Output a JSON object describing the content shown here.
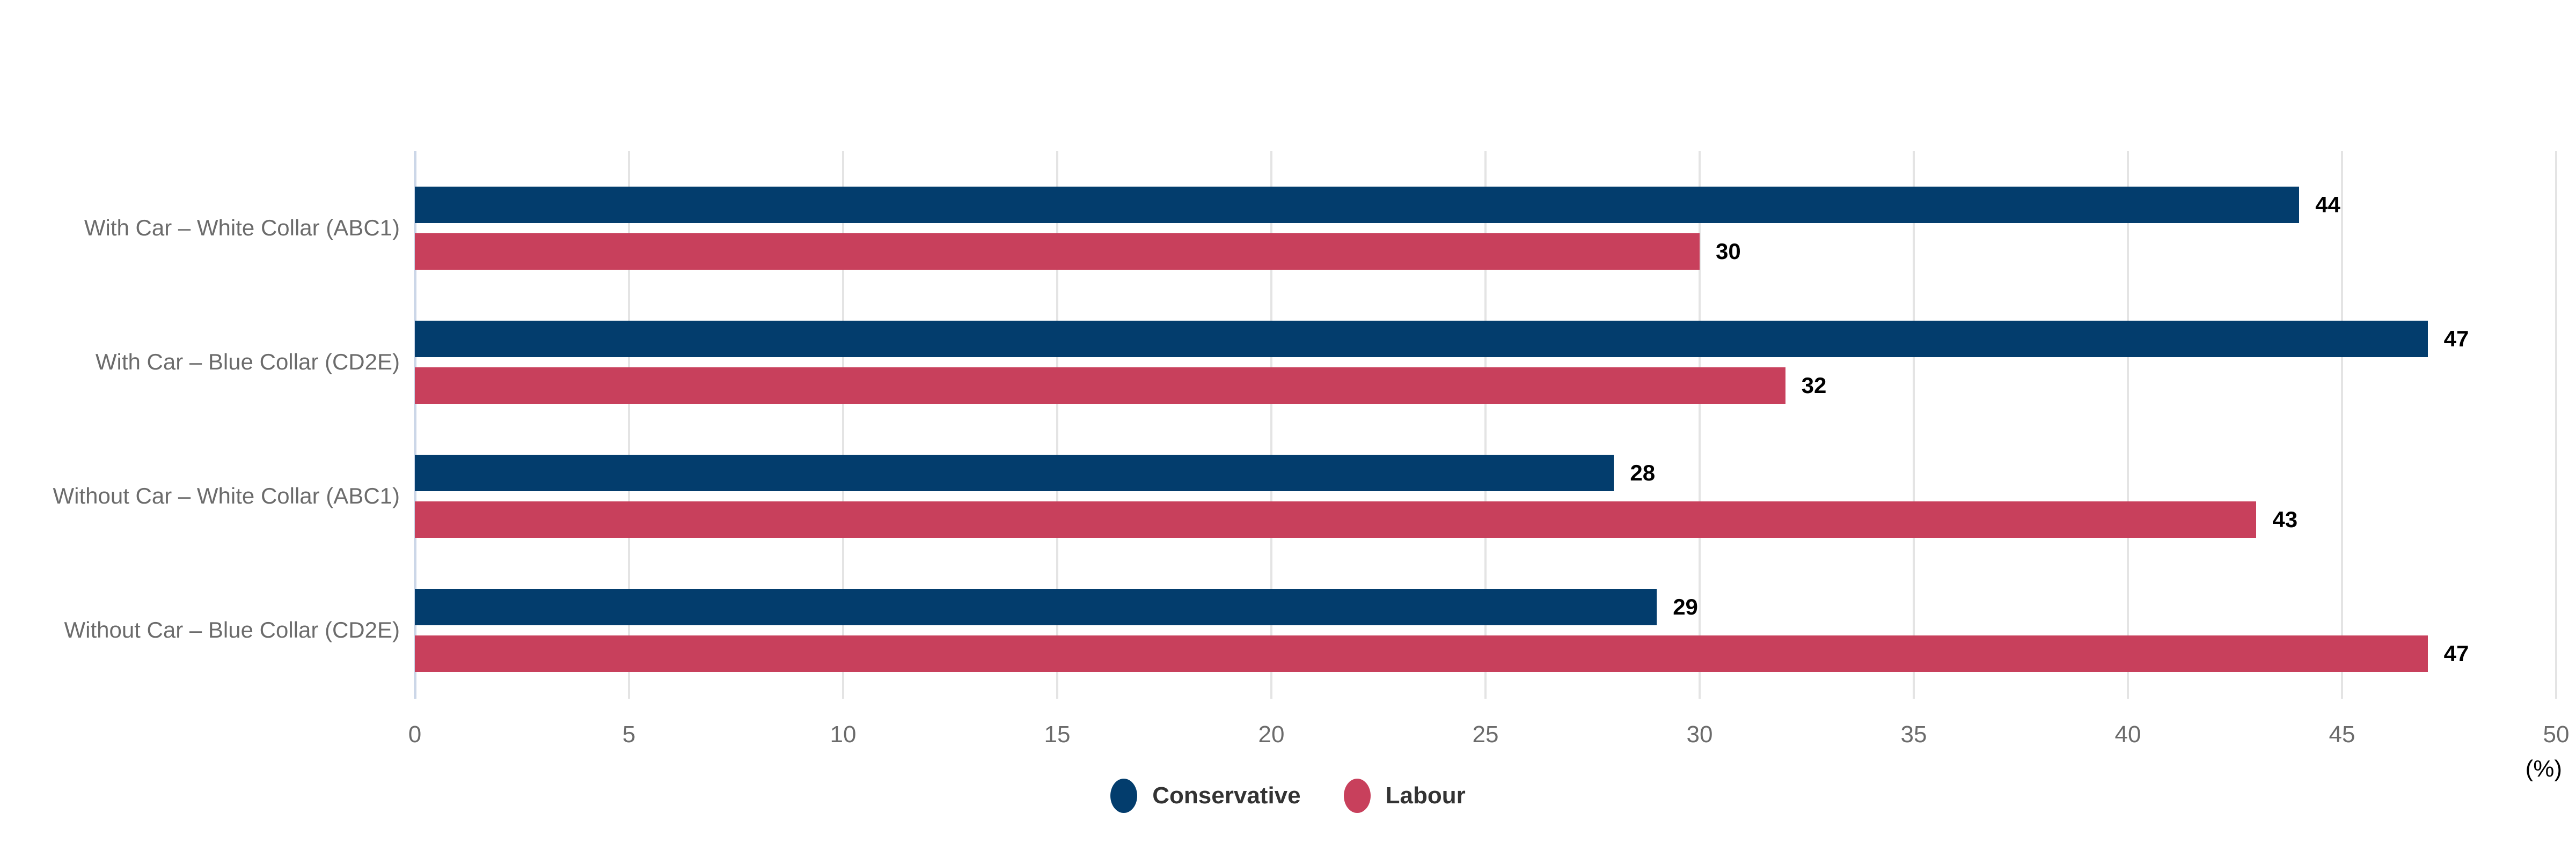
{
  "chart_data": {
    "type": "bar",
    "orientation": "horizontal",
    "categories": [
      "With Car – White Collar (ABC1)",
      "With Car – Blue Collar (CD2E)",
      "Without Car – White Collar (ABC1)",
      "Without Car – Blue Collar (CD2E)"
    ],
    "series": [
      {
        "name": "Conservative",
        "color": "#033d6d",
        "values": [
          44,
          47,
          28,
          29
        ]
      },
      {
        "name": "Labour",
        "color": "#c8405c",
        "values": [
          30,
          32,
          43,
          47
        ]
      }
    ],
    "x_ticks": [
      0,
      5,
      10,
      15,
      20,
      25,
      30,
      35,
      40,
      45,
      50
    ],
    "xlim": [
      0,
      50
    ],
    "xlabel": "(%)",
    "grid": true,
    "legend_position": "bottom-center",
    "value_labels": "end-of-bar"
  },
  "styles": {
    "background": "#ffffff",
    "axis_line_color": "#ccd7e8",
    "gridline_color": "#e4e4e4",
    "tick_label_color": "#6b6b6b",
    "category_label_color": "#6b6b6b",
    "value_label_color": "#000000",
    "legend_text_color": "#333333"
  }
}
